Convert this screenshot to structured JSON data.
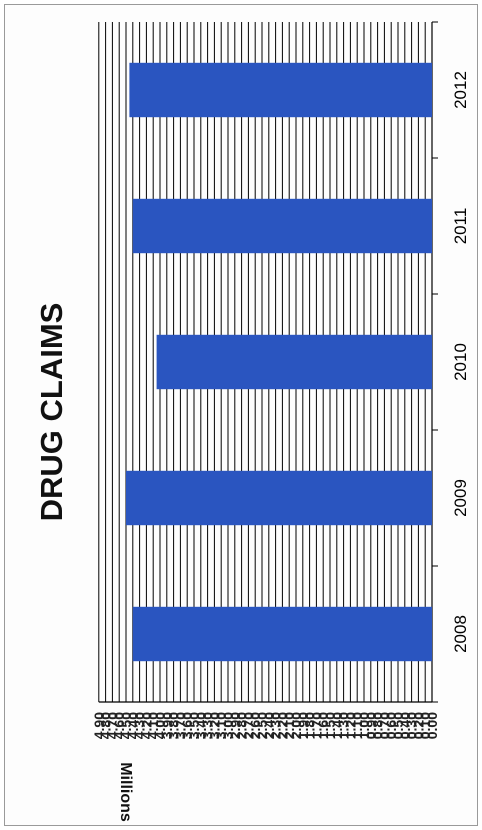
{
  "chart_data": {
    "type": "bar",
    "orientation": "rotated-90-clockwise",
    "title": "DRUG CLAIMS",
    "ylabel": "Millions",
    "xlabel": "",
    "categories": [
      "2008",
      "2009",
      "2010",
      "2011",
      "2012"
    ],
    "values": [
      4.4,
      4.5,
      4.05,
      4.4,
      4.45
    ],
    "ylim": [
      0,
      4.9
    ],
    "ytick_step": 0.1,
    "grid": true,
    "legend": "none",
    "bar_color": "#2a55c0",
    "grid_color": "#000000"
  }
}
